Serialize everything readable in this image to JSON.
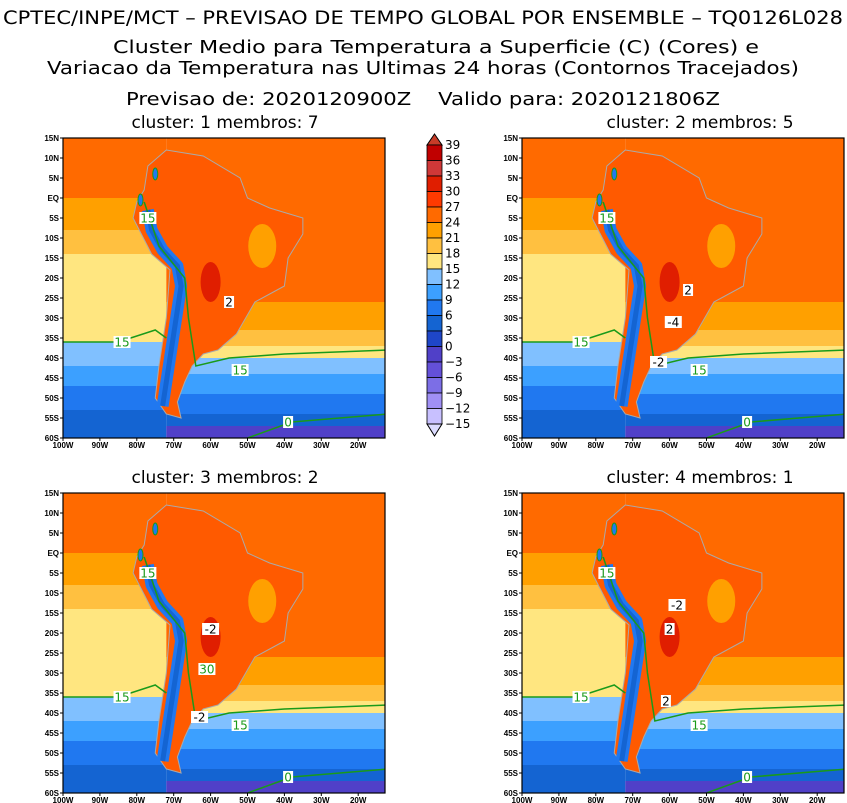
{
  "header": {
    "line1": "CPTEC/INPE/MCT – PREVISAO DE TEMPO GLOBAL POR ENSEMBLE – TQ0126L028",
    "line2": "Cluster Medio para Temperatura a Superficie (C) (Cores) e",
    "line3": "Variacao da Temperatura nas Ultimas 24 horas (Contornos Tracejados)",
    "line4": "Previsao de: 2020120900Z    Valido para: 2020121806Z"
  },
  "panels": [
    {
      "title": "cluster: 1   membros: 7",
      "contour_labels": [
        "15",
        "15",
        "15",
        "2",
        "0"
      ]
    },
    {
      "title": "cluster: 2   membros: 5",
      "contour_labels": [
        "15",
        "15",
        "15",
        "2",
        "-4",
        "-2",
        "0"
      ]
    },
    {
      "title": "cluster: 3   membros: 2",
      "contour_labels": [
        "15",
        "15",
        "15",
        "-2",
        "30",
        "-2",
        "0"
      ]
    },
    {
      "title": "cluster: 4   membros: 1",
      "contour_labels": [
        "15",
        "15",
        "15",
        "-2",
        "2",
        "2",
        "0"
      ]
    }
  ],
  "axes": {
    "lat_ticks": [
      "15N",
      "10N",
      "5N",
      "EQ",
      "5S",
      "10S",
      "15S",
      "20S",
      "25S",
      "30S",
      "35S",
      "40S",
      "45S",
      "50S",
      "55S",
      "60S"
    ],
    "lon_ticks": [
      "100W",
      "90W",
      "80W",
      "70W",
      "60W",
      "50W",
      "40W",
      "30W",
      "20W"
    ]
  },
  "colorbar": {
    "labels": [
      "39",
      "36",
      "33",
      "30",
      "27",
      "24",
      "21",
      "18",
      "15",
      "12",
      "9",
      "6",
      "3",
      "0",
      "-3",
      "-6",
      "-9",
      "-12",
      "-15"
    ],
    "colors": [
      "#c00000",
      "#d03838",
      "#e01e00",
      "#ff3a00",
      "#ff6a00",
      "#ffa000",
      "#ffc040",
      "#ffe680",
      "#80c0ff",
      "#3ca0ff",
      "#2078f0",
      "#1464d2",
      "#1e46c8",
      "#5040c8",
      "#6450d8",
      "#7c6ee6",
      "#a090f5",
      "#c8c0ff"
    ],
    "top_color": "#c83c28",
    "bottom_color": "#dcdcff"
  }
}
